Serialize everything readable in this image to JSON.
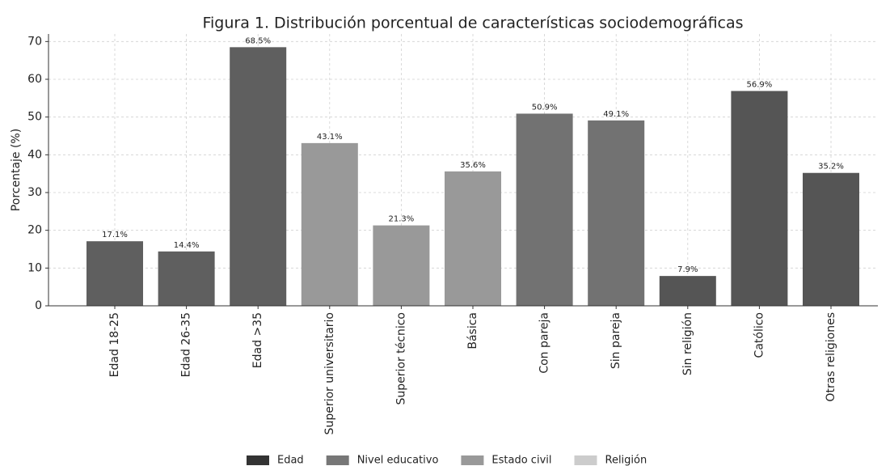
{
  "chart_data": {
    "type": "bar",
    "title": "Figura 1. Distribución porcentual de características sociodemográficas",
    "y_label": "Porcentaje (%)",
    "categories": [
      "Edad 18-25",
      "Edad 26-35",
      "Edad >35",
      "Superior universitario",
      "Superior técnico",
      "Básica",
      "Con pareja",
      "Sin pareja",
      "Sin religión",
      "Católico",
      "Otras religiones"
    ],
    "values": [
      17.1,
      14.4,
      68.5,
      43.1,
      21.3,
      35.6,
      50.9,
      49.1,
      7.9,
      56.9,
      35.2
    ],
    "value_labels": [
      "17.1%",
      "14.4%",
      "68.5%",
      "43.1%",
      "21.3%",
      "35.6%",
      "50.9%",
      "49.1%",
      "7.9%",
      "56.9%",
      "35.2%"
    ],
    "colors": [
      "#5f5f5f",
      "#5f5f5f",
      "#5f5f5f",
      "#999999",
      "#999999",
      "#999999",
      "#727272",
      "#727272",
      "#555555",
      "#555555",
      "#555555"
    ],
    "ylim": [
      0,
      72
    ],
    "yticks": [
      0,
      10,
      20,
      30,
      40,
      50,
      60,
      70
    ],
    "grid": true,
    "legend": [
      {
        "name": "Edad",
        "color": "#333333"
      },
      {
        "name": "Nivel educativo",
        "color": "#777777"
      },
      {
        "name": "Estado civil",
        "color": "#999999"
      },
      {
        "name": "Religión",
        "color": "#cccccc"
      }
    ],
    "legend_position": "bottom"
  }
}
